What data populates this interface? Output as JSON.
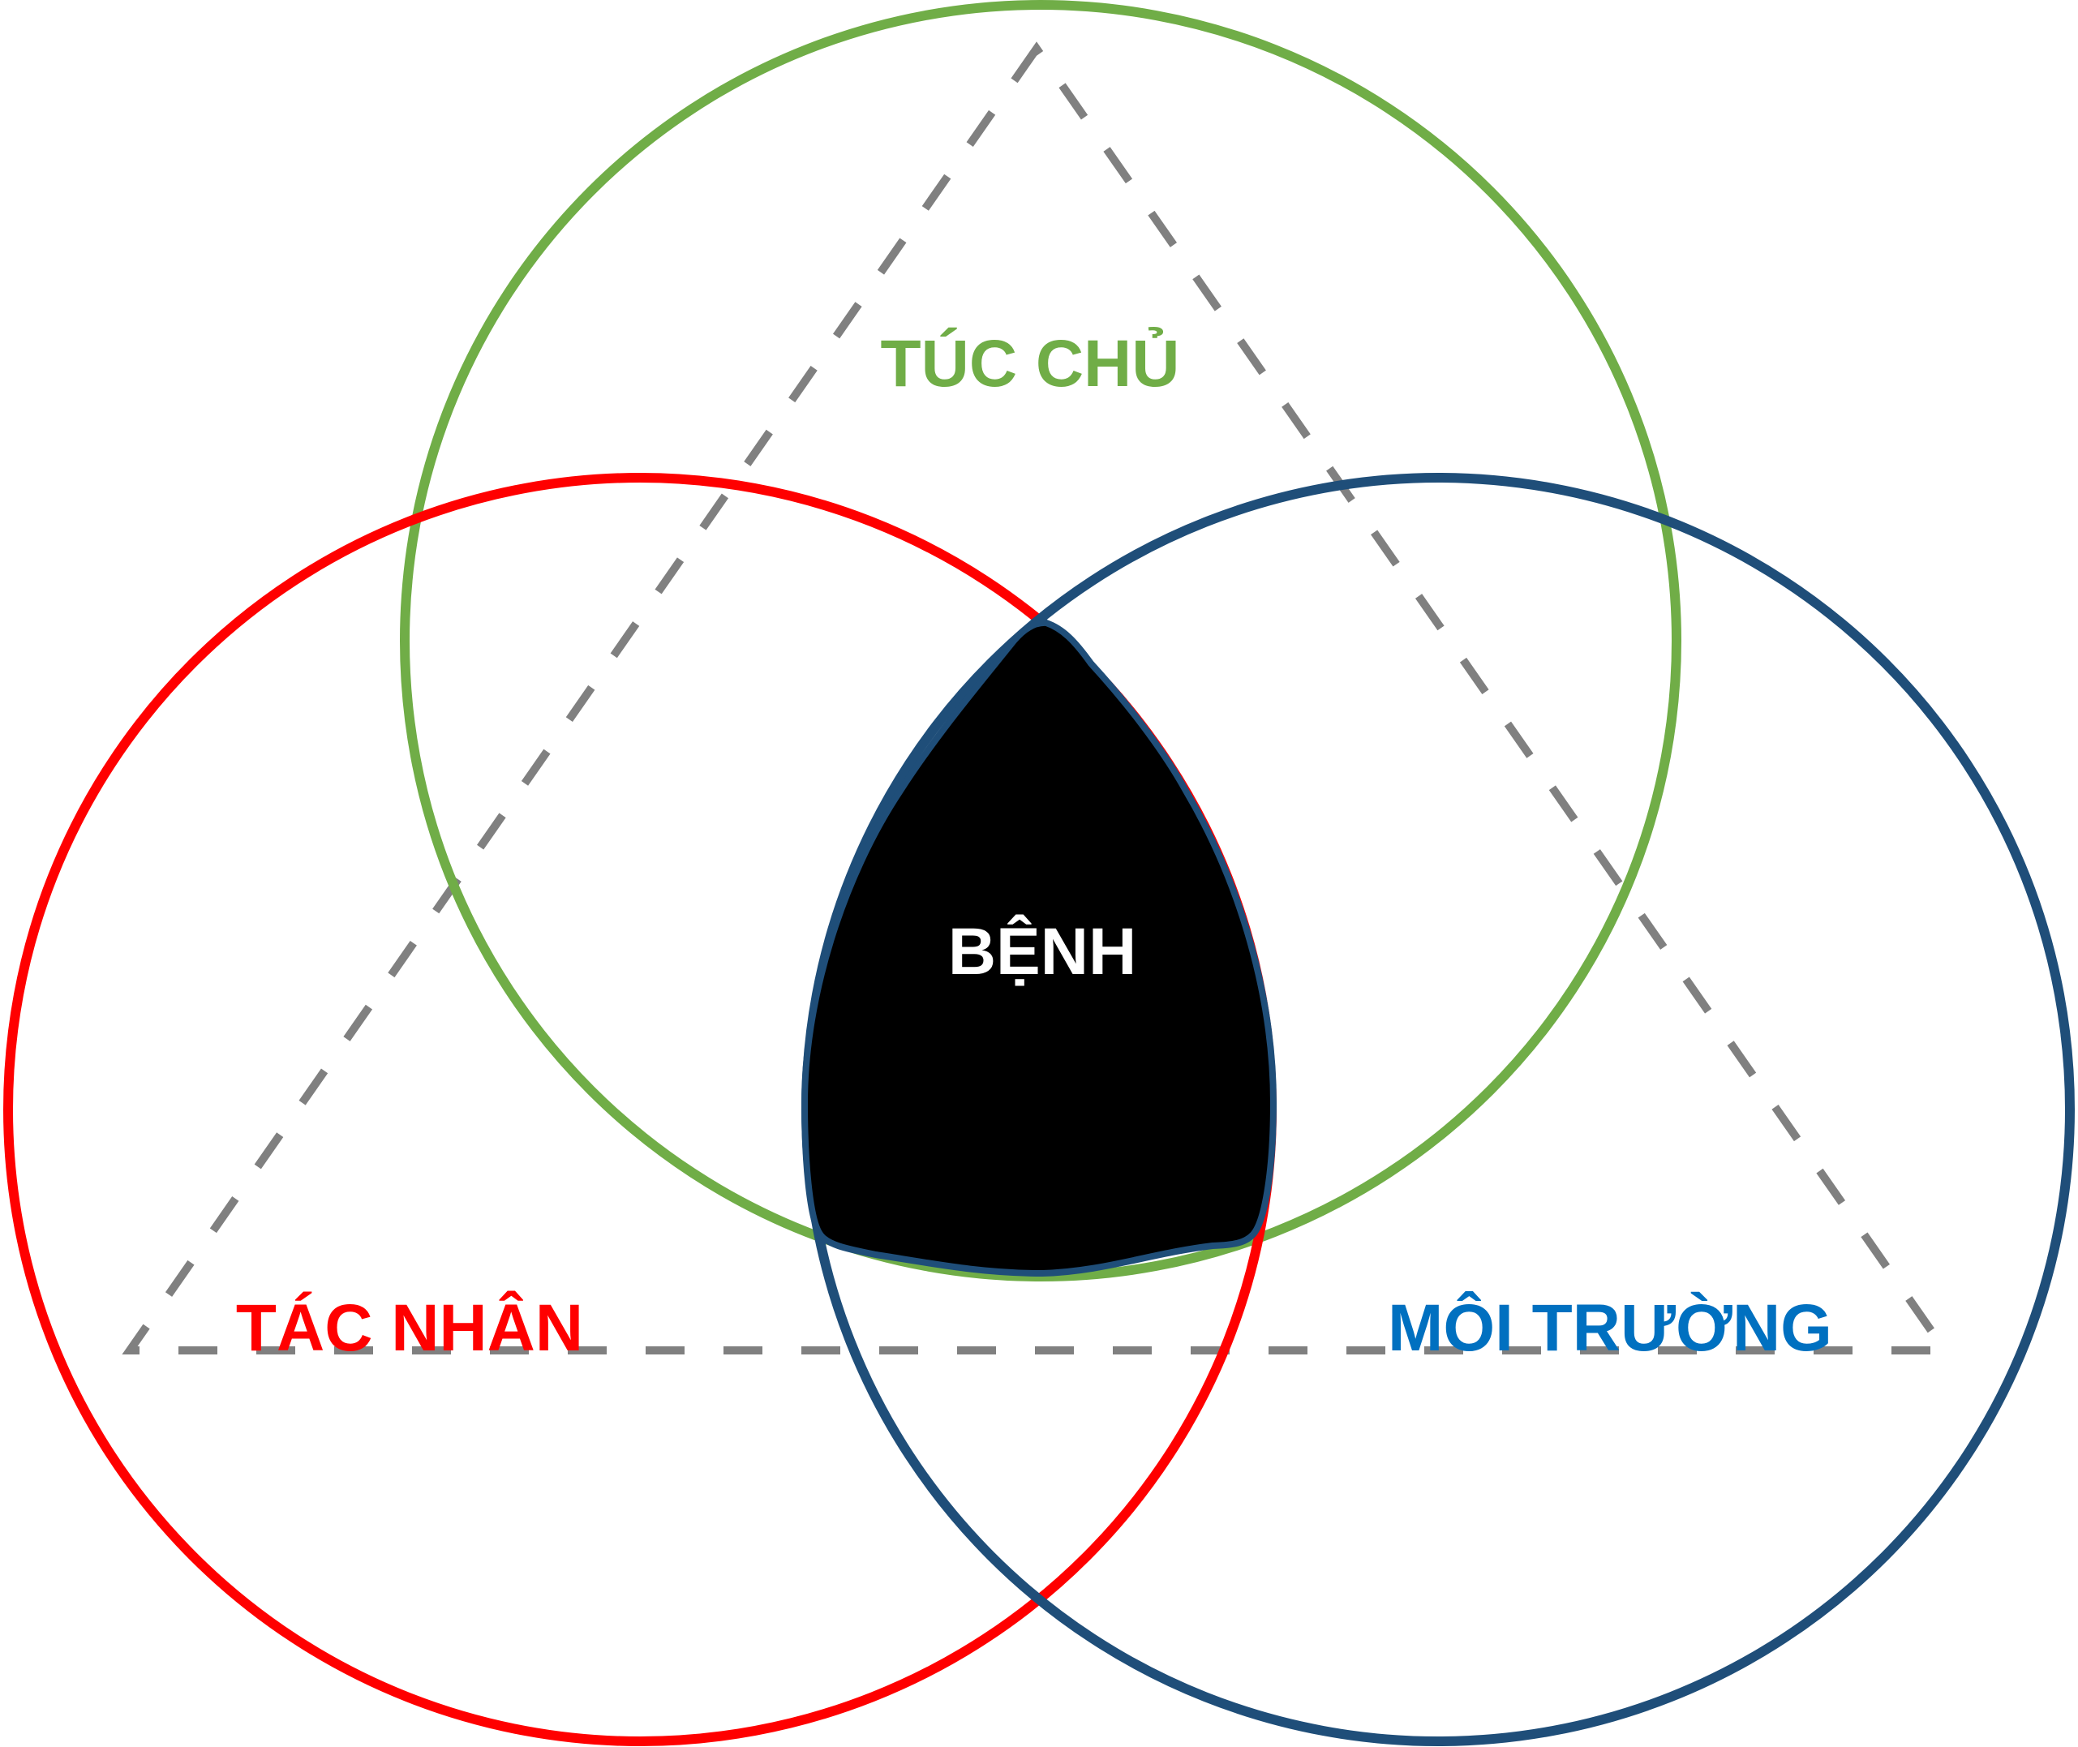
{
  "diagram": {
    "labels": {
      "host": "TÚC CHỦ",
      "agent": "TÁC NHÂN",
      "environment": "MÔI TRƯỜNG",
      "disease": "BỆNH"
    },
    "colors": {
      "host": "#70AD47",
      "agent": "#FF0000",
      "environment": "#1F4E79",
      "environment_label": "#0070C0",
      "disease_fill": "#000000",
      "disease_text": "#FFFFFF",
      "triangle": "#808080",
      "background": "#FFFFFF"
    }
  }
}
